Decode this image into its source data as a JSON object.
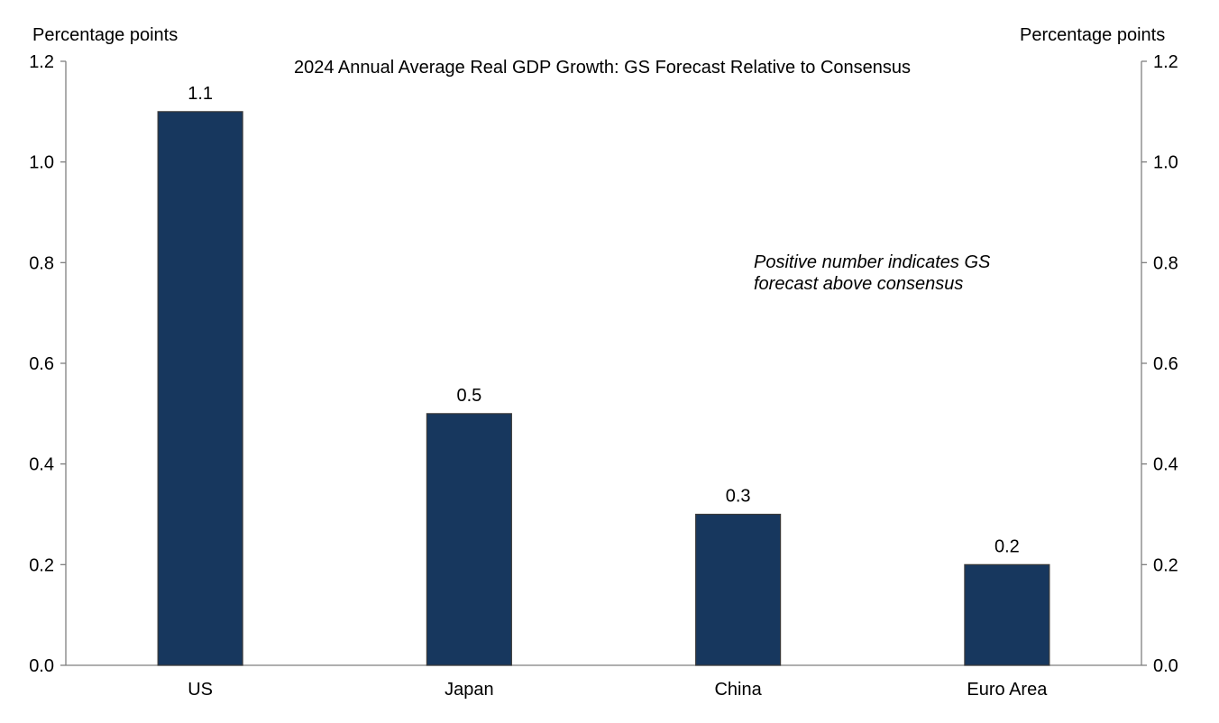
{
  "chart_data": {
    "type": "bar",
    "title": "2024 Annual Average Real GDP Growth: GS Forecast Relative to Consensus",
    "ylabel_left": "Percentage points",
    "ylabel_right": "Percentage points",
    "xlabel": "",
    "categories": [
      "US",
      "Japan",
      "China",
      "Euro Area"
    ],
    "values": [
      1.1,
      0.5,
      0.3,
      0.2
    ],
    "data_labels": [
      "1.1",
      "0.5",
      "0.3",
      "0.2"
    ],
    "ylim": [
      0,
      1.2
    ],
    "yticks": [
      0.0,
      0.2,
      0.4,
      0.6,
      0.8,
      1.0,
      1.2
    ],
    "ytick_labels": [
      "0.0",
      "0.2",
      "0.4",
      "0.6",
      "0.8",
      "1.0",
      "1.2"
    ],
    "annotation": [
      "Positive number indicates GS",
      "forecast above consensus"
    ],
    "grid": false,
    "legend": "none",
    "colors": {
      "bar": "#17375e",
      "bar_edge": "#3a3a3a",
      "axis": "#7f7f7f"
    }
  }
}
